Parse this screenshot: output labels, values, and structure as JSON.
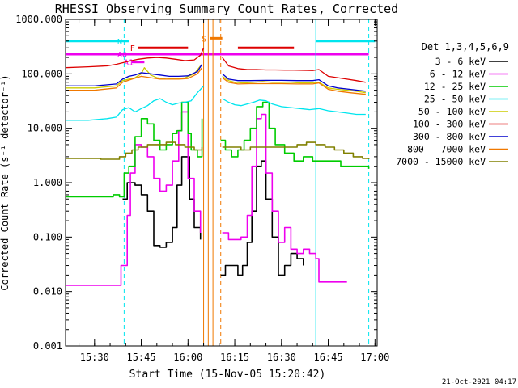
{
  "chart_data": {
    "type": "line",
    "title": "RHESSI Observing Summary Count Rates, Corrected",
    "xlabel": "Start Time (15-Nov-05 15:20:42)",
    "ylabel": "Corrected Count Rate (s⁻¹ detector⁻¹)",
    "xscale": "time",
    "xlim": [
      "15:20:42",
      "17:00:42"
    ],
    "x_ticks": [
      "15:30",
      "15:45",
      "16:00",
      "16:15",
      "16:30",
      "16:45",
      "17:00"
    ],
    "yscale": "log",
    "ylim": [
      0.001,
      1000
    ],
    "y_ticks": [
      "0.001",
      "0.010",
      "0.100",
      "1.000",
      "10.000",
      "100.000",
      "1000.000"
    ],
    "legend_title": "Det 1,3,4,5,6,9",
    "legend_position": "right",
    "timestamp": "21-Oct-2021 04:17",
    "colors": {
      "axes": "#000000",
      "cyan": "#00e5ee",
      "orange": "#f07800",
      "red": "#dd0000",
      "magenta": "#ee00ee"
    },
    "series": [
      {
        "name": "3 - 6 keV",
        "color": "#000000",
        "style": "step",
        "t": [
          "15:39:00",
          "15:40:30",
          "15:43:00",
          "15:45:00",
          "15:47:00",
          "15:49:00",
          "15:51:00",
          "15:53:00",
          "15:55:00",
          "15:56:30",
          "15:58:00",
          "16:00:30",
          "16:02:00",
          "16:04:00",
          null,
          "16:10:30",
          "16:12:00",
          "16:14:00",
          "16:16:00",
          "16:17:30",
          "16:19:00",
          "16:20:30",
          "16:22:00",
          "16:23:30",
          "16:25:00",
          "16:27:00",
          "16:29:00",
          "16:31:00",
          "16:33:00",
          "16:35:00",
          "16:37:00"
        ],
        "v": [
          0.5,
          1.0,
          0.9,
          0.6,
          0.3,
          0.07,
          0.065,
          0.08,
          0.15,
          0.9,
          3.0,
          0.5,
          0.15,
          0.09,
          null,
          0.02,
          0.03,
          0.03,
          0.02,
          0.03,
          0.08,
          0.3,
          2.0,
          2.5,
          0.5,
          0.1,
          0.02,
          0.03,
          0.05,
          0.04,
          0.03
        ]
      },
      {
        "name": "6 - 12 keV",
        "color": "#ee00ee",
        "style": "step",
        "t": [
          "15:20:42",
          "15:38:00",
          "15:38:30",
          "15:40:30",
          "15:41:30",
          "15:43:00",
          "15:45:00",
          "15:47:00",
          "15:49:00",
          "15:51:00",
          "15:53:00",
          "15:55:00",
          "15:57:00",
          "15:58:00",
          "16:00:00",
          "16:02:00",
          "16:04:00",
          null,
          "16:11:00",
          "16:13:00",
          "16:15:00",
          "16:17:00",
          "16:19:00",
          "16:20:30",
          "16:22:00",
          "16:23:30",
          "16:25:00",
          "16:27:00",
          "16:29:00",
          "16:31:00",
          "16:33:00",
          "16:35:00",
          "16:37:00",
          "16:39:00",
          "16:41:00",
          "16:42:00",
          "16:45:00",
          "16:48:00",
          "16:51:00"
        ],
        "v": [
          0.013,
          0.013,
          0.03,
          0.25,
          1.5,
          5.0,
          4.5,
          3.0,
          1.2,
          0.7,
          0.9,
          2.5,
          9.0,
          20.0,
          1.2,
          0.3,
          0.12,
          null,
          0.12,
          0.09,
          0.09,
          0.1,
          0.25,
          2.0,
          15.0,
          18.0,
          1.5,
          0.3,
          0.08,
          0.15,
          0.06,
          0.05,
          0.06,
          0.05,
          0.04,
          0.015,
          0.015,
          0.015,
          0.015
        ]
      },
      {
        "name": "12 - 25 keV",
        "color": "#00cc00",
        "style": "step",
        "t": [
          "15:20:42",
          "15:30:00",
          "15:36:00",
          "15:38:00",
          "15:39:30",
          "15:41:00",
          "15:43:00",
          "15:45:00",
          "15:47:00",
          "15:49:00",
          "15:51:00",
          "15:53:00",
          "15:55:00",
          "15:56:30",
          "15:58:00",
          "16:00:00",
          "16:01:00",
          "16:03:00",
          "16:04:30",
          null,
          "16:10:30",
          "16:12:00",
          "16:14:00",
          "16:16:00",
          "16:18:00",
          "16:20:00",
          "16:22:00",
          "16:24:00",
          "16:26:00",
          "16:28:00",
          "16:31:00",
          "16:34:00",
          "16:37:00",
          "16:40:00",
          "16:43:00",
          "16:46:00",
          "16:49:00",
          "16:52:00",
          "16:55:00",
          "16:58:00"
        ],
        "v": [
          0.55,
          0.55,
          0.6,
          0.55,
          1.5,
          2.0,
          7.0,
          15.0,
          12.0,
          6.0,
          4.0,
          5.0,
          8.0,
          9.0,
          30.0,
          8.0,
          4.0,
          3.0,
          15.0,
          null,
          6.0,
          4.0,
          3.0,
          4.0,
          6.0,
          10.0,
          25.0,
          30.0,
          10.0,
          5.0,
          3.5,
          2.5,
          3.0,
          2.5,
          2.5,
          2.5,
          2.0,
          2.0,
          2.0,
          1.8
        ]
      },
      {
        "name": "25 - 50 keV",
        "color": "#00e5ee",
        "style": "line",
        "t": [
          "15:20:42",
          "15:28:00",
          "15:34:00",
          "15:37:00",
          "15:39:00",
          "15:41:00",
          "15:43:00",
          "15:45:00",
          "15:47:00",
          "15:49:00",
          "15:51:00",
          "15:53:00",
          "15:55:00",
          "15:57:00",
          "15:59:00",
          "16:01:00",
          "16:03:00",
          "16:05:00",
          null,
          "16:11:00",
          "16:13:00",
          "16:15:00",
          "16:17:00",
          "16:19:00",
          "16:21:00",
          "16:23:00",
          "16:25:00",
          "16:27:00",
          "16:30:00",
          "16:33:00",
          "16:36:00",
          "16:39:00",
          "16:42:00",
          "16:45:00",
          "16:48:00",
          "16:51:00",
          "16:54:00",
          "16:57:00"
        ],
        "v": [
          14.0,
          14.0,
          15.0,
          16.0,
          22.0,
          24.0,
          20.0,
          23.0,
          26.0,
          32.0,
          35.0,
          30.0,
          27.0,
          29.0,
          30.0,
          32.0,
          45.0,
          60.0,
          null,
          35.0,
          30.0,
          27.0,
          26.0,
          28.0,
          30.0,
          33.0,
          32.0,
          28.0,
          25.0,
          24.0,
          23.0,
          22.0,
          23.0,
          21.0,
          20.0,
          19.0,
          18.0,
          18.0
        ]
      },
      {
        "name": "50 - 100 keV",
        "color": "#cccc00",
        "style": "line",
        "t": [
          "15:20:42",
          "15:30:00",
          "15:37:00",
          "15:39:00",
          "15:41:00",
          "15:43:00",
          "15:45:00",
          "15:46:00",
          "15:48:00",
          "15:50:00",
          "15:53:00",
          "15:56:00",
          "15:59:00",
          "16:02:00",
          "16:04:00",
          null,
          "16:11:00",
          "16:13:00",
          "16:15:00",
          "16:18:00",
          "16:21:00",
          "16:24:00",
          "16:27:00",
          "16:30:00",
          "16:33:00",
          "16:36:00",
          "16:39:00",
          "16:42:00",
          "16:45:00",
          "16:48:00",
          "16:51:00",
          "16:54:00",
          "16:57:00"
        ],
        "v": [
          55.0,
          55.0,
          60.0,
          75.0,
          80.0,
          85.0,
          100.0,
          130.0,
          95.0,
          85.0,
          80.0,
          82.0,
          84.0,
          100.0,
          140.0,
          null,
          90.0,
          75.0,
          70.0,
          68.0,
          70.0,
          72.0,
          70.0,
          70.0,
          70.0,
          68.0,
          68.0,
          70.0,
          55.0,
          52.0,
          50.0,
          48.0,
          45.0
        ]
      },
      {
        "name": "100 - 300 keV",
        "color": "#dd0000",
        "style": "line",
        "t": [
          "15:20:42",
          "15:28:00",
          "15:34:00",
          "15:37:00",
          "15:39:00",
          "15:41:00",
          "15:44:00",
          "15:47:00",
          "15:50:00",
          "15:53:00",
          "15:56:00",
          "15:59:00",
          "16:02:00",
          "16:04:00",
          "16:05:00",
          null,
          "16:11:00",
          "16:13:00",
          "16:16:00",
          "16:19:00",
          "16:22:00",
          "16:25:00",
          "16:28:00",
          "16:31:00",
          "16:34:00",
          "16:37:00",
          "16:40:00",
          "16:42:00",
          "16:45:00",
          "16:48:00",
          "16:51:00",
          "16:54:00",
          "16:57:00"
        ],
        "v": [
          130.0,
          135.0,
          140.0,
          150.0,
          160.0,
          170.0,
          185.0,
          195.0,
          200.0,
          195.0,
          185.0,
          175.0,
          180.0,
          220.0,
          300.0,
          null,
          200.0,
          140.0,
          125.0,
          120.0,
          120.0,
          118.0,
          118.0,
          117.0,
          117.0,
          116.0,
          115.0,
          120.0,
          90.0,
          85.0,
          80.0,
          75.0,
          70.0
        ]
      },
      {
        "name": "300 - 800 keV",
        "color": "#0000cc",
        "style": "line",
        "t": [
          "15:20:42",
          "15:30:00",
          "15:37:00",
          "15:39:00",
          "15:41:00",
          "15:43:00",
          "15:45:00",
          "15:48:00",
          "15:51:00",
          "15:54:00",
          "15:57:00",
          "16:00:00",
          "16:03:00",
          "16:04:30",
          null,
          "16:11:00",
          "16:13:00",
          "16:16:00",
          "16:20:00",
          "16:25:00",
          "16:30:00",
          "16:35:00",
          "16:40:00",
          "16:42:00",
          "16:45:00",
          "16:48:00",
          "16:52:00",
          "16:57:00"
        ],
        "v": [
          60.0,
          60.0,
          65.0,
          80.0,
          90.0,
          95.0,
          105.0,
          100.0,
          95.0,
          90.0,
          90.0,
          92.0,
          110.0,
          150.0,
          null,
          100.0,
          80.0,
          75.0,
          75.0,
          76.0,
          76.0,
          75.0,
          75.0,
          78.0,
          60.0,
          55.0,
          52.0,
          48.0
        ]
      },
      {
        "name": "800 - 7000 keV",
        "color": "#f07800",
        "style": "line",
        "t": [
          "15:20:42",
          "15:30:00",
          "15:37:00",
          "15:39:00",
          "15:42:00",
          "15:45:00",
          "15:48:00",
          "15:51:00",
          "15:54:00",
          "15:57:00",
          "16:00:00",
          "16:03:00",
          "16:04:30",
          null,
          "16:11:00",
          "16:13:00",
          "16:16:00",
          "16:20:00",
          "16:25:00",
          "16:30:00",
          "16:35:00",
          "16:40:00",
          "16:42:00",
          "16:45:00",
          "16:48:00",
          "16:52:00",
          "16:57:00"
        ],
        "v": [
          50.0,
          50.0,
          55.0,
          70.0,
          80.0,
          90.0,
          85.0,
          80.0,
          80.0,
          80.0,
          82.0,
          100.0,
          130.0,
          null,
          85.0,
          70.0,
          65.0,
          66.0,
          66.0,
          66.0,
          65.0,
          65.0,
          68.0,
          52.0,
          48.0,
          45.0,
          42.0
        ]
      },
      {
        "name": "7000 - 15000 keV",
        "color": "#808000",
        "style": "step",
        "t": [
          "15:20:42",
          "15:26:00",
          "15:32:00",
          "15:38:00",
          "15:40:00",
          "15:42:00",
          "15:44:00",
          "15:47:00",
          "15:50:00",
          "15:53:00",
          "15:56:00",
          "15:59:00",
          "16:02:00",
          "16:04:30",
          null,
          "16:11:00",
          "16:14:00",
          "16:17:00",
          "16:20:00",
          "16:23:00",
          "16:26:00",
          "16:29:00",
          "16:32:00",
          "16:35:00",
          "16:38:00",
          "16:41:00",
          "16:44:00",
          "16:47:00",
          "16:50:00",
          "16:53:00",
          "16:56:00",
          "16:58:00"
        ],
        "v": [
          2.8,
          2.8,
          2.7,
          3.0,
          3.5,
          4.0,
          4.5,
          5.0,
          5.0,
          5.5,
          5.0,
          4.5,
          4.0,
          4.5,
          null,
          4.5,
          4.5,
          4.0,
          4.5,
          4.5,
          4.5,
          4.5,
          4.5,
          5.0,
          5.5,
          5.0,
          4.5,
          4.0,
          3.5,
          3.0,
          2.8,
          2.7
        ]
      }
    ],
    "flag_bars": [
      {
        "label": "N",
        "color": "#00e5ee",
        "y": 400,
        "spans": [
          [
            "15:20:42",
            "15:41:00"
          ],
          [
            "16:41:00",
            "17:00:00"
          ]
        ]
      },
      {
        "label": "F",
        "color": "#dd0000",
        "y": 300,
        "spans": [
          [
            "15:44:00",
            "16:00:00"
          ],
          [
            "16:16:00",
            "16:34:00"
          ]
        ]
      },
      {
        "label": "S",
        "color": "#f07800",
        "y": 450,
        "spans": [
          [
            "16:07:00",
            "16:11:00"
          ]
        ]
      },
      {
        "label": "A0",
        "color": "#ee00ee",
        "y": 230,
        "spans": [
          [
            "15:20:42",
            "16:58:00"
          ]
        ]
      },
      {
        "label": "A1",
        "color": "#ee00ee",
        "y": 165,
        "spans": [
          [
            "15:42:00",
            "15:46:00"
          ]
        ]
      }
    ],
    "vertical_lines": [
      {
        "t": "15:39:30",
        "color": "#00e5ee",
        "style": "dashed"
      },
      {
        "t": "16:05:00",
        "color": "#f07800",
        "style": "solid"
      },
      {
        "t": "16:06:30",
        "color": "#f07800",
        "style": "solid"
      },
      {
        "t": "16:08:00",
        "color": "#f07800",
        "style": "solid"
      },
      {
        "t": "16:10:30",
        "color": "#f07800",
        "style": "dashed"
      },
      {
        "t": "16:41:00",
        "color": "#00e5ee",
        "style": "solid"
      },
      {
        "t": "16:58:00",
        "color": "#00e5ee",
        "style": "dashed"
      }
    ]
  }
}
